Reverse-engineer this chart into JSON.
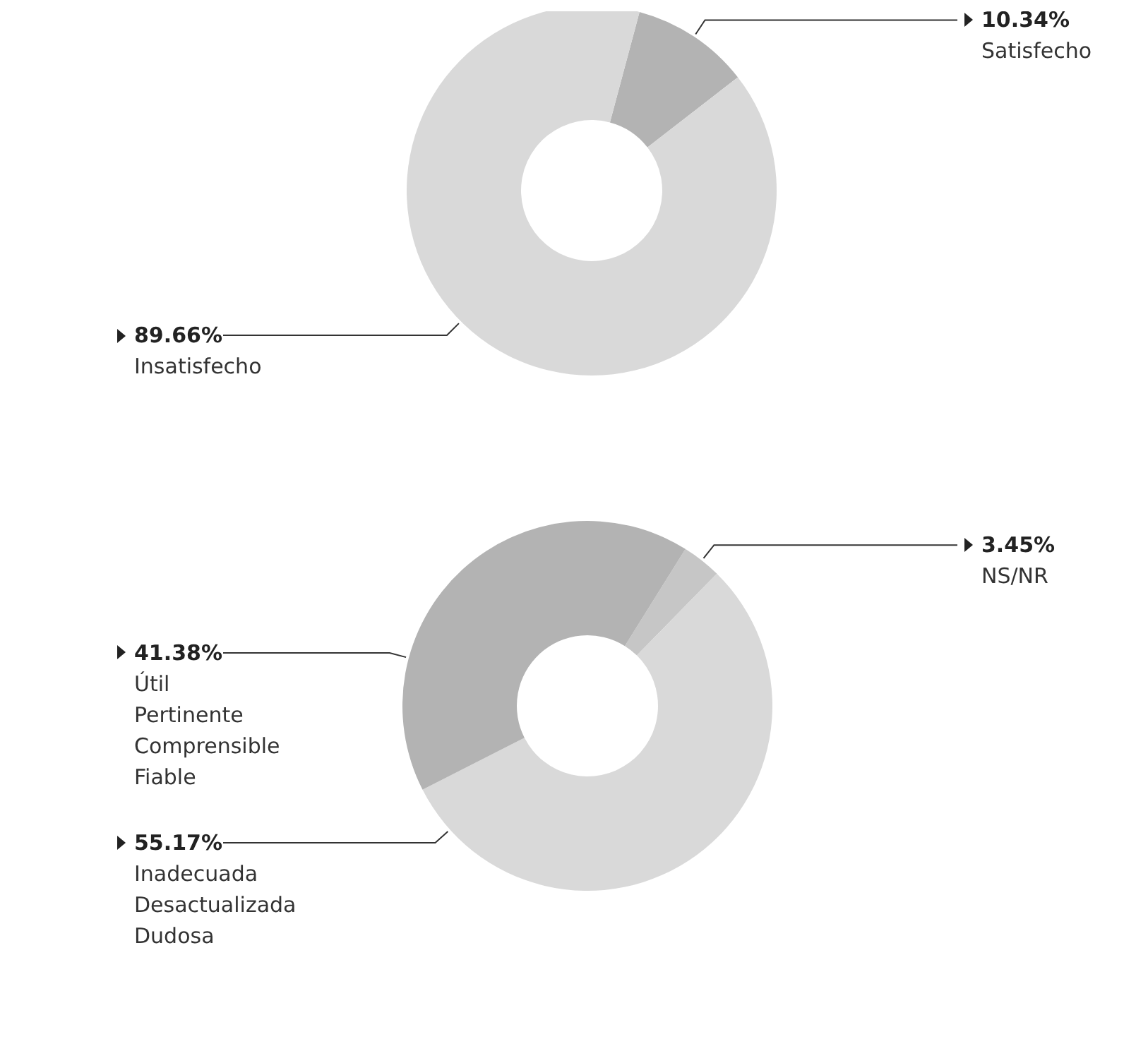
{
  "chart_data": [
    {
      "type": "donut",
      "categories": [
        "Satisfecho",
        "Insatisfecho"
      ],
      "values": [
        10.34,
        89.66
      ],
      "colors": [
        "#b3b3b3",
        "#d9d9d9"
      ],
      "value_labels": [
        "10.34%",
        "89.66%"
      ]
    },
    {
      "type": "donut",
      "categories": [
        "NS/NR",
        "Inadecuada\nDesactualizada\nDudosa",
        "Útil\nPertinente\nComprensible\nFiable"
      ],
      "values": [
        3.45,
        55.17,
        41.38
      ],
      "colors": [
        "#c6c6c6",
        "#d9d9d9",
        "#b3b3b3"
      ],
      "value_labels": [
        "3.45%",
        "55.17%",
        "41.38%"
      ]
    }
  ]
}
